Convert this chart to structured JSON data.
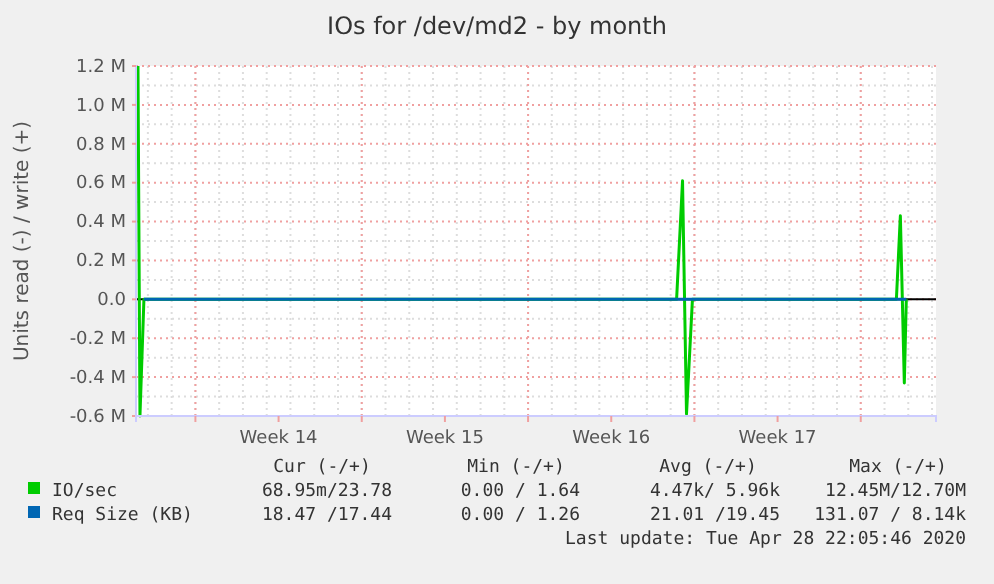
{
  "chart_data": {
    "type": "line",
    "title": "IOs for /dev/md2 - by month",
    "ylabel": "Units read (-) / write (+)",
    "xlim": [
      "2020-03-27T12:00",
      "2020-04-30T04:00"
    ],
    "xticks": [
      {
        "value": "2020-03-30T00:00",
        "label": null
      },
      {
        "value": "2020-04-02T12:00",
        "label": "Week 14"
      },
      {
        "value": "2020-04-06T00:00",
        "label": null
      },
      {
        "value": "2020-04-09T12:00",
        "label": "Week 15"
      },
      {
        "value": "2020-04-13T00:00",
        "label": null
      },
      {
        "value": "2020-04-16T12:00",
        "label": "Week 16"
      },
      {
        "value": "2020-04-20T00:00",
        "label": null
      },
      {
        "value": "2020-04-23T12:00",
        "label": "Week 17"
      },
      {
        "value": "2020-04-27T00:00",
        "label": null
      }
    ],
    "ylim": [
      -600000,
      1200000
    ],
    "yticks": [
      {
        "value": -600000,
        "label": "-0.6 M"
      },
      {
        "value": -400000,
        "label": "-0.4 M"
      },
      {
        "value": -200000,
        "label": "-0.2 M"
      },
      {
        "value": 0,
        "label": "0.0"
      },
      {
        "value": 200000,
        "label": "0.2 M"
      },
      {
        "value": 400000,
        "label": "0.4 M"
      },
      {
        "value": 600000,
        "label": "0.6 M"
      },
      {
        "value": 800000,
        "label": "0.8 M"
      },
      {
        "value": 1000000,
        "label": "1.0 M"
      },
      {
        "value": 1200000,
        "label": "1.2 M"
      }
    ],
    "grid": true,
    "legend": "bottom",
    "ref_lines": [
      {
        "axis": "y",
        "value": 0,
        "label": null,
        "color": "#000000"
      }
    ],
    "series": [
      {
        "name": "IO/sec",
        "color": "#00cc00",
        "x": [
          "2020-03-27T14:00",
          "2020-03-27T16:00",
          "2020-03-27T20:00",
          "2020-04-19T06:00",
          "2020-04-19T12:00",
          "2020-04-19T16:00",
          "2020-04-19T22:00",
          "2020-04-28T12:00",
          "2020-04-28T16:00",
          "2020-04-28T20:00",
          "2020-04-28T22:00"
        ],
        "values": [
          1200000,
          -600000,
          0,
          0,
          610000,
          -590000,
          0,
          0,
          430000,
          -430000,
          0
        ]
      },
      {
        "name": "Req Size (KB)",
        "color": "#0066b3",
        "x": [
          "2020-03-27T20:00",
          "2020-04-28T22:00"
        ],
        "values": [
          0,
          0
        ]
      }
    ],
    "annotations": [
      "Cur (-/+)",
      "Min (-/+)",
      "Avg (-/+)",
      "Max (-/+)",
      "68.95m/23.78",
      "0.00 / 1.64",
      "4.47k/ 5.96k",
      "12.45M/12.70M",
      "18.47 /17.44",
      "0.00 / 1.26",
      "21.01 /19.45",
      "131.07 / 8.14k",
      "Last update: Tue Apr 28 22:05:46 2020"
    ]
  }
}
